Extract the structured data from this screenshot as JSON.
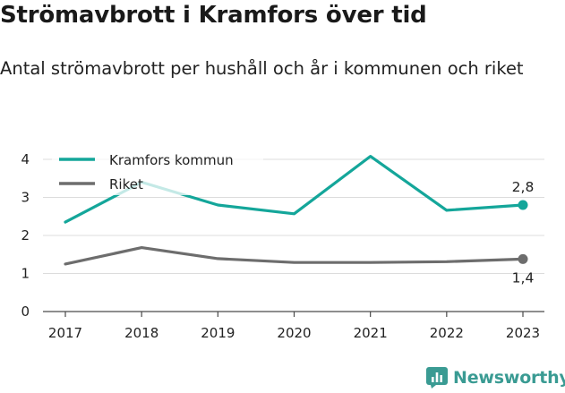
{
  "header": {
    "title": "Strömavbrott i Kramfors över tid",
    "subtitle": "Antal strömavbrott per hushåll och år i kommunen och riket"
  },
  "brand": {
    "name": "Newsworthy",
    "icon": "newsworthy-logo-icon",
    "color": "#3a9b93"
  },
  "chart_data": {
    "type": "line",
    "title": "Strömavbrott i Kramfors över tid",
    "subtitle": "Antal strömavbrott per hushåll och år i kommunen och riket",
    "xlabel": "",
    "ylabel": "",
    "x": [
      "2017",
      "2018",
      "2019",
      "2020",
      "2021",
      "2022",
      "2023"
    ],
    "ylim": [
      0,
      4
    ],
    "yticks": [
      "0",
      "1",
      "2",
      "3",
      "4"
    ],
    "grid": true,
    "legend_position": "top-left",
    "series": [
      {
        "name": "Kramfors kommun",
        "color": "#14a69a",
        "values": [
          2.35,
          3.4,
          2.8,
          2.57,
          4.08,
          2.66,
          2.8
        ],
        "end_label": "2,8"
      },
      {
        "name": "Riket",
        "color": "#6d6d6d",
        "values": [
          1.25,
          1.68,
          1.39,
          1.29,
          1.29,
          1.31,
          1.38
        ],
        "end_label": "1,4"
      }
    ]
  }
}
